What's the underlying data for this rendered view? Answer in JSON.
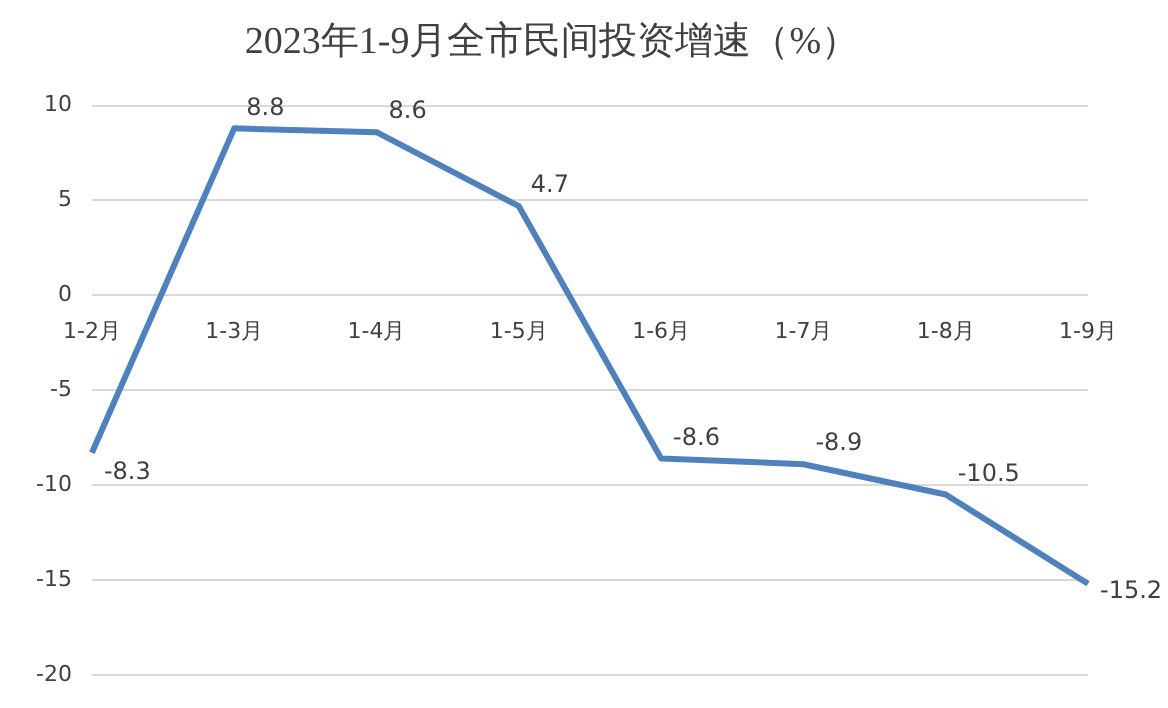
{
  "chart_data": {
    "type": "line",
    "title": "2023年1-9月全市民间投资增速（%）",
    "categories": [
      "1-2月",
      "1-3月",
      "1-4月",
      "1-5月",
      "1-6月",
      "1-7月",
      "1-8月",
      "1-9月"
    ],
    "series": [
      {
        "color": "#4f81bd",
        "values": [
          -8.3,
          8.8,
          8.6,
          4.7,
          -8.6,
          -8.9,
          -10.5,
          -15.2
        ]
      }
    ],
    "ylim": [
      -20,
      10
    ],
    "yticks": [
      -20,
      -15,
      -10,
      -5,
      0,
      5,
      10
    ],
    "grid": "y",
    "data_labels": true,
    "legend": false,
    "marker": "none"
  }
}
